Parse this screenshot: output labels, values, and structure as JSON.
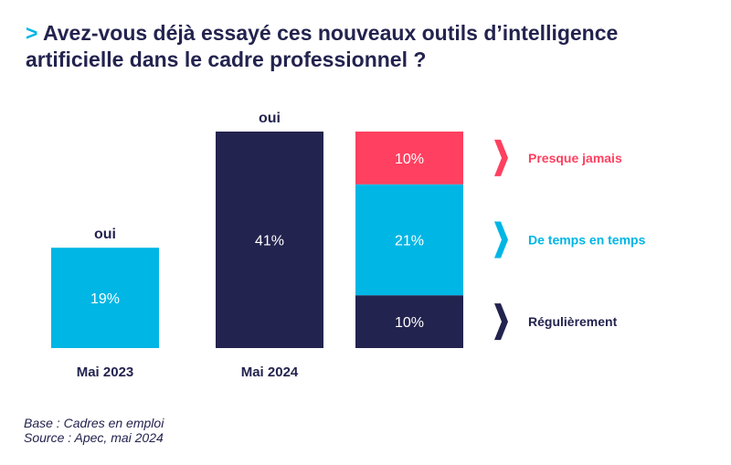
{
  "title": {
    "prefix": ">",
    "text": "Avez-vous déjà essayé ces nouveaux outils d’intelligence artificielle dans le cadre professionnel ?"
  },
  "chart_data": {
    "type": "bar",
    "title": "Avez-vous déjà essayé ces nouveaux outils d’intelligence artificielle dans le cadre professionnel ?",
    "unit": "%",
    "categories": [
      "Mai 2023",
      "Mai 2024"
    ],
    "totals": [
      {
        "category": "Mai 2023",
        "label": "oui",
        "value": 19,
        "display": "19%",
        "color": "#00b6e5"
      },
      {
        "category": "Mai 2024",
        "label": "oui",
        "value": 41,
        "display": "41%",
        "color": "#23234f"
      }
    ],
    "breakdown": {
      "category": "Mai 2024",
      "stacked": true,
      "series": [
        {
          "name": "Régulièrement",
          "value": 10,
          "display": "10%",
          "color": "#23234f"
        },
        {
          "name": "De temps en temps",
          "value": 21,
          "display": "21%",
          "color": "#00b6e5"
        },
        {
          "name": "Presque jamais",
          "value": 10,
          "display": "10%",
          "color": "#ff4060"
        }
      ]
    },
    "xlabel": "",
    "ylabel": "",
    "ylim": [
      0,
      41
    ]
  },
  "footer": {
    "base": "Base : Cadres en emploi",
    "source": "Source : Apec, mai 2024"
  }
}
